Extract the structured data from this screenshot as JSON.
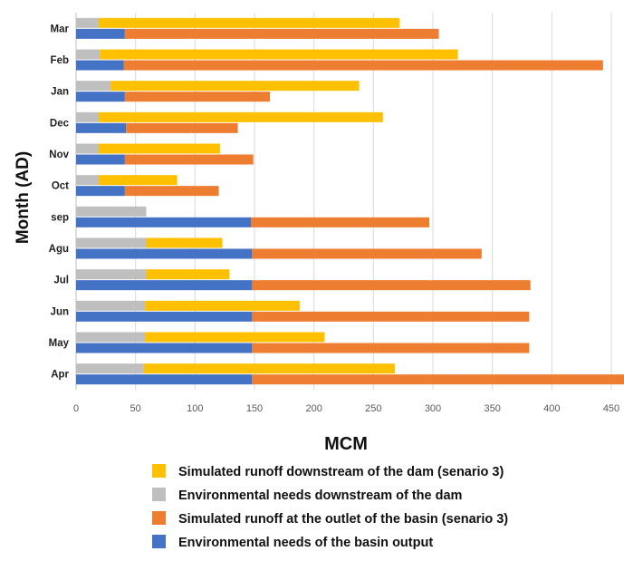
{
  "chart_data": {
    "type": "bar",
    "orientation": "horizontal",
    "categories": [
      "Mar",
      "Feb",
      "Jan",
      "Dec",
      "Nov",
      "Oct",
      "sep",
      "Agu",
      "Jul",
      "Jun",
      "May",
      "Apr"
    ],
    "series": [
      {
        "name": "Simulated runoff downstream of the dam (senario 3)",
        "color": "#FFC000",
        "values": [
          253,
          301,
          209,
          239,
          102,
          66,
          0,
          64,
          70,
          130,
          151,
          211
        ],
        "row": "upper"
      },
      {
        "name": "Environmental needs downstream of the dam",
        "color": "#BFBFBF",
        "values": [
          19,
          20,
          29,
          19,
          19,
          19,
          59,
          59,
          59,
          58,
          58,
          57
        ],
        "row": "upper"
      },
      {
        "name": "Simulated runoff at the outlet of the basin (senario 3)",
        "color": "#ED7D31",
        "values": [
          264,
          403,
          122,
          94,
          108,
          79,
          150,
          193,
          234,
          233,
          233,
          361
        ],
        "row": "lower"
      },
      {
        "name": "Environmental needs of the basin output",
        "color": "#4472C4",
        "values": [
          41,
          40,
          41,
          42,
          41,
          41,
          147,
          148,
          148,
          148,
          148,
          148
        ],
        "row": "lower"
      }
    ],
    "xlabel": "MCM",
    "ylabel": "Month (AD)",
    "xlim": [
      0,
      450
    ],
    "xticks": [
      0,
      50,
      100,
      150,
      200,
      250,
      300,
      350,
      400,
      450
    ],
    "grid": true,
    "legend_position": "bottom"
  }
}
